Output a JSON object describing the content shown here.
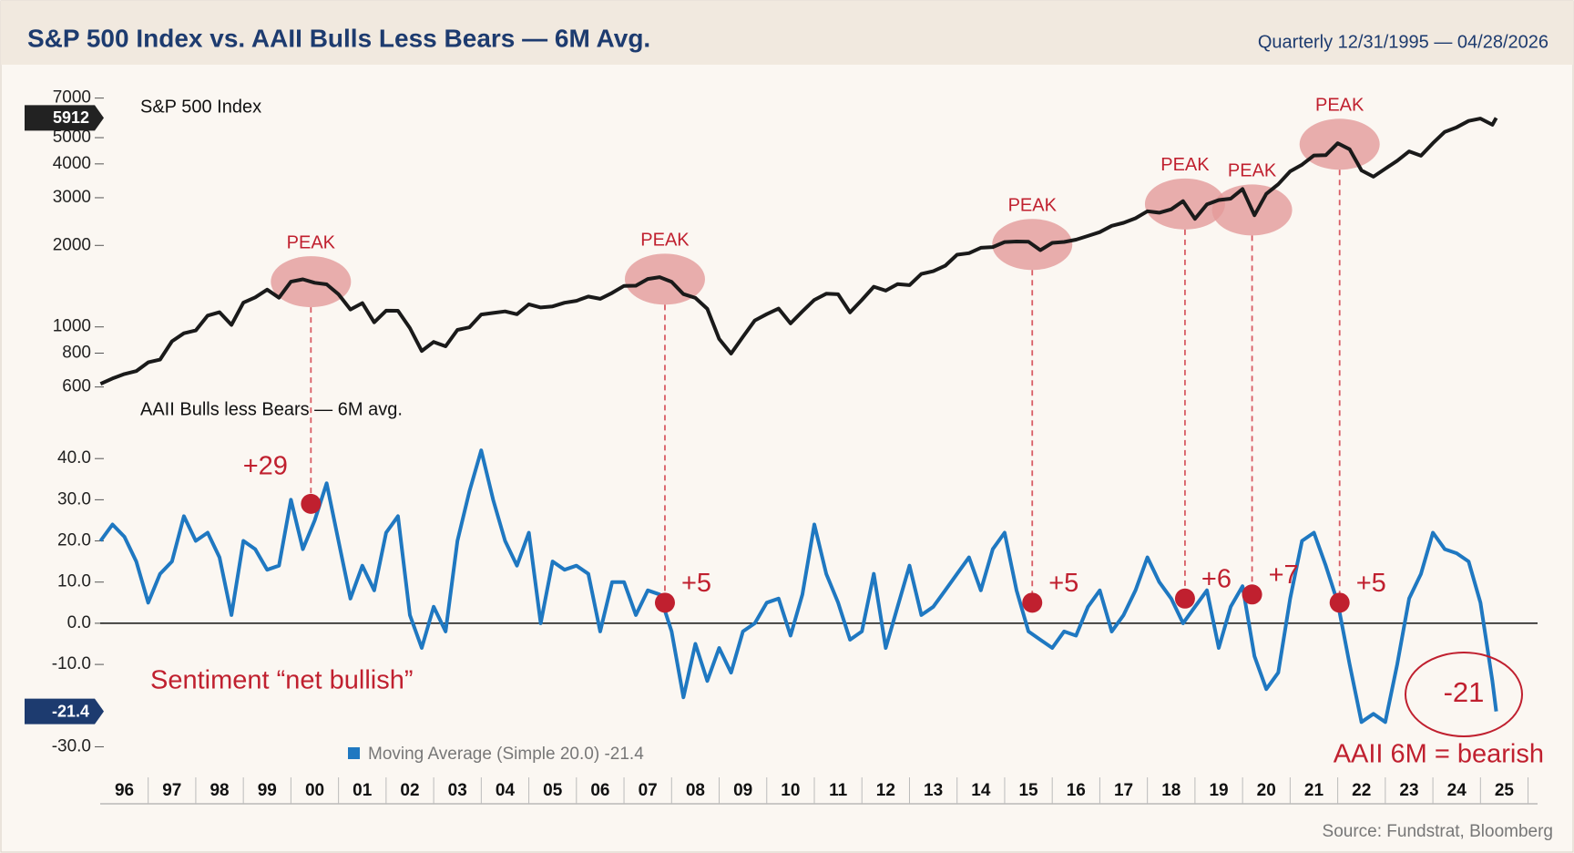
{
  "header": {
    "title": "S&P 500 Index vs. AAII Bulls Less Bears — 6M Avg.",
    "subtitle": "Quarterly 12/31/1995 — 04/28/2026"
  },
  "source": "Source: Fundstrat, Bloomberg",
  "chart_data": [
    {
      "type": "line",
      "title": "S&P 500 Index",
      "log_scale": true,
      "color": "#1a1a1a",
      "xlim": [
        1995.8,
        2026.2
      ],
      "x": [
        1996,
        1996.25,
        1996.5,
        1996.75,
        1997,
        1997.25,
        1997.5,
        1997.75,
        1998,
        1998.25,
        1998.5,
        1998.75,
        1999,
        1999.25,
        1999.5,
        1999.75,
        2000,
        2000.25,
        2000.5,
        2000.75,
        2001,
        2001.25,
        2001.5,
        2001.75,
        2002,
        2002.25,
        2002.5,
        2002.75,
        2003,
        2003.25,
        2003.5,
        2003.75,
        2004,
        2004.25,
        2004.5,
        2004.75,
        2005,
        2005.25,
        2005.5,
        2005.75,
        2006,
        2006.25,
        2006.5,
        2006.75,
        2007,
        2007.25,
        2007.5,
        2007.75,
        2008,
        2008.25,
        2008.5,
        2008.75,
        2009,
        2009.25,
        2009.5,
        2009.75,
        2010,
        2010.25,
        2010.5,
        2010.75,
        2011,
        2011.25,
        2011.5,
        2011.75,
        2012,
        2012.25,
        2012.5,
        2012.75,
        2013,
        2013.25,
        2013.5,
        2013.75,
        2014,
        2014.25,
        2014.5,
        2014.75,
        2015,
        2015.25,
        2015.5,
        2015.75,
        2016,
        2016.25,
        2016.5,
        2016.75,
        2017,
        2017.25,
        2017.5,
        2017.75,
        2018,
        2018.25,
        2018.5,
        2018.75,
        2019,
        2019.25,
        2019.5,
        2019.75,
        2020,
        2020.25,
        2020.5,
        2020.75,
        2021,
        2021.25,
        2021.5,
        2021.75,
        2022,
        2022.25,
        2022.5,
        2022.75,
        2023,
        2023.25,
        2023.5,
        2023.75,
        2024,
        2024.25,
        2024.5,
        2024.75,
        2025,
        2025.25,
        2025.33
      ],
      "values": [
        616,
        645,
        670,
        687,
        740,
        757,
        885,
        947,
        970,
        1101,
        1133,
        1017,
        1229,
        1286,
        1373,
        1282,
        1469,
        1499,
        1455,
        1436,
        1320,
        1160,
        1224,
        1040,
        1148,
        1147,
        990,
        815,
        880,
        848,
        975,
        996,
        1111,
        1126,
        1141,
        1114,
        1212,
        1180,
        1191,
        1228,
        1248,
        1295,
        1270,
        1335,
        1418,
        1420,
        1503,
        1527,
        1468,
        1322,
        1280,
        1166,
        903,
        797,
        919,
        1057,
        1115,
        1169,
        1030,
        1141,
        1258,
        1326,
        1320,
        1131,
        1258,
        1408,
        1362,
        1440,
        1426,
        1569,
        1606,
        1682,
        1848,
        1872,
        1960,
        1972,
        2058,
        2067,
        2063,
        1920,
        2044,
        2060,
        2099,
        2168,
        2239,
        2363,
        2423,
        2519,
        2674,
        2641,
        2718,
        2914,
        2507,
        2834,
        2942,
        2977,
        3231,
        2585,
        3100,
        3363,
        3756,
        3973,
        4298,
        4308,
        4766,
        4530,
        3785,
        3586,
        3840,
        4109,
        4450,
        4288,
        4770,
        5254,
        5460,
        5762,
        5882,
        5580,
        5912
      ],
      "last_label": "5912",
      "ylim": [
        580,
        7200
      ],
      "yticks": [
        600,
        800,
        1000,
        2000,
        3000,
        4000,
        5000,
        7000
      ],
      "annotations": [
        {
          "x": 2000.42,
          "label": "PEAK"
        },
        {
          "x": 2007.86,
          "label": "PEAK"
        },
        {
          "x": 2015.58,
          "label": "PEAK"
        },
        {
          "x": 2018.79,
          "label": "PEAK"
        },
        {
          "x": 2020.2,
          "label": "PEAK"
        },
        {
          "x": 2022.04,
          "label": "PEAK"
        }
      ]
    },
    {
      "type": "line",
      "title": "AAII Bulls less Bears — 6M avg.",
      "xlim": [
        1995.8,
        2026.2
      ],
      "x": [
        1996,
        1996.25,
        1996.5,
        1996.75,
        1997,
        1997.25,
        1997.5,
        1997.75,
        1998,
        1998.25,
        1998.5,
        1998.75,
        1999,
        1999.25,
        1999.5,
        1999.75,
        2000,
        2000.25,
        2000.5,
        2000.75,
        2001,
        2001.25,
        2001.5,
        2001.75,
        2002,
        2002.25,
        2002.5,
        2002.75,
        2003,
        2003.25,
        2003.5,
        2003.75,
        2004,
        2004.25,
        2004.5,
        2004.75,
        2005,
        2005.25,
        2005.5,
        2005.75,
        2006,
        2006.25,
        2006.5,
        2006.75,
        2007,
        2007.25,
        2007.5,
        2007.75,
        2008,
        2008.25,
        2008.5,
        2008.75,
        2009,
        2009.25,
        2009.5,
        2009.75,
        2010,
        2010.25,
        2010.5,
        2010.75,
        2011,
        2011.25,
        2011.5,
        2011.75,
        2012,
        2012.25,
        2012.5,
        2012.75,
        2013,
        2013.25,
        2013.5,
        2013.75,
        2014,
        2014.25,
        2014.5,
        2014.75,
        2015,
        2015.25,
        2015.5,
        2015.75,
        2016,
        2016.25,
        2016.5,
        2016.75,
        2017,
        2017.25,
        2017.5,
        2017.75,
        2018,
        2018.25,
        2018.5,
        2018.75,
        2019,
        2019.25,
        2019.5,
        2019.75,
        2020,
        2020.25,
        2020.5,
        2020.75,
        2021,
        2021.25,
        2021.5,
        2021.75,
        2022,
        2022.25,
        2022.5,
        2022.75,
        2023,
        2023.25,
        2023.5,
        2023.75,
        2024,
        2024.25,
        2024.5,
        2024.75,
        2025,
        2025.25,
        2025.33
      ],
      "series": [
        {
          "name": "Moving Average (Simple 20.0) -21.4",
          "color": "#1f78c1",
          "values": [
            20,
            24,
            21,
            15,
            5,
            12,
            15,
            26,
            20,
            22,
            16,
            2,
            20,
            18,
            13,
            14,
            30,
            18,
            25,
            34,
            20,
            6,
            14,
            8,
            22,
            26,
            2,
            -6,
            4,
            -2,
            20,
            32,
            42,
            30,
            20,
            14,
            22,
            0,
            15,
            13,
            14,
            12,
            -2,
            10,
            10,
            2,
            8,
            7,
            -2,
            -18,
            -5,
            -14,
            -6,
            -12,
            -2,
            0,
            5,
            6,
            -3,
            7,
            24,
            12,
            5,
            -4,
            -2,
            12,
            -6,
            4,
            14,
            2,
            4,
            8,
            12,
            16,
            8,
            18,
            22,
            8,
            -2,
            -4,
            -6,
            -2,
            -3,
            4,
            8,
            -2,
            2,
            8,
            16,
            10,
            6,
            0,
            4,
            8,
            -6,
            4,
            9,
            -8,
            -16,
            -12,
            6,
            20,
            22,
            14,
            5,
            -10,
            -24,
            -22,
            -24,
            -10,
            6,
            12,
            22,
            18,
            17,
            15,
            5,
            -14,
            -21.4
          ]
        }
      ],
      "last_label": "-21.4",
      "ylim": [
        -33,
        45
      ],
      "yticks": [
        {
          "value": 40,
          "label": "40.0"
        },
        {
          "value": 30,
          "label": "30.0"
        },
        {
          "value": 20,
          "label": "20.0"
        },
        {
          "value": 10,
          "label": "10.0"
        },
        {
          "value": 0,
          "label": "0.0"
        },
        {
          "value": -10,
          "label": "-10.0"
        },
        {
          "value": -30,
          "label": "-30.0"
        }
      ],
      "xticks": [
        {
          "value": 1996.5,
          "label": "96"
        },
        {
          "value": 1997.5,
          "label": "97"
        },
        {
          "value": 1998.5,
          "label": "98"
        },
        {
          "value": 1999.5,
          "label": "99"
        },
        {
          "value": 2000.5,
          "label": "00"
        },
        {
          "value": 2001.5,
          "label": "01"
        },
        {
          "value": 2002.5,
          "label": "02"
        },
        {
          "value": 2003.5,
          "label": "03"
        },
        {
          "value": 2004.5,
          "label": "04"
        },
        {
          "value": 2005.5,
          "label": "05"
        },
        {
          "value": 2006.5,
          "label": "06"
        },
        {
          "value": 2007.5,
          "label": "07"
        },
        {
          "value": 2008.5,
          "label": "08"
        },
        {
          "value": 2009.5,
          "label": "09"
        },
        {
          "value": 2010.5,
          "label": "10"
        },
        {
          "value": 2011.5,
          "label": "11"
        },
        {
          "value": 2012.5,
          "label": "12"
        },
        {
          "value": 2013.5,
          "label": "13"
        },
        {
          "value": 2014.5,
          "label": "14"
        },
        {
          "value": 2015.5,
          "label": "15"
        },
        {
          "value": 2016.5,
          "label": "16"
        },
        {
          "value": 2017.5,
          "label": "17"
        },
        {
          "value": 2018.5,
          "label": "18"
        },
        {
          "value": 2019.5,
          "label": "19"
        },
        {
          "value": 2020.5,
          "label": "20"
        },
        {
          "value": 2021.5,
          "label": "21"
        },
        {
          "value": 2022.5,
          "label": "22"
        },
        {
          "value": 2023.5,
          "label": "23"
        },
        {
          "value": 2024.5,
          "label": "24"
        },
        {
          "value": 2025.5,
          "label": "25"
        }
      ],
      "markers": [
        {
          "x": 2000.42,
          "value": 29,
          "value_label": "+29"
        },
        {
          "x": 2007.86,
          "value": 5,
          "value_label": "+5"
        },
        {
          "x": 2015.58,
          "value": 5,
          "value_label": "+5"
        },
        {
          "x": 2018.79,
          "value": 6,
          "value_label": "+6"
        },
        {
          "x": 2020.2,
          "value": 7,
          "value_label": "+7"
        },
        {
          "x": 2022.04,
          "value": 5,
          "value_label": "+5"
        }
      ],
      "annotations": [
        "Sentiment “net bullish”",
        "-21",
        "AAII 6M = bearish"
      ]
    }
  ]
}
